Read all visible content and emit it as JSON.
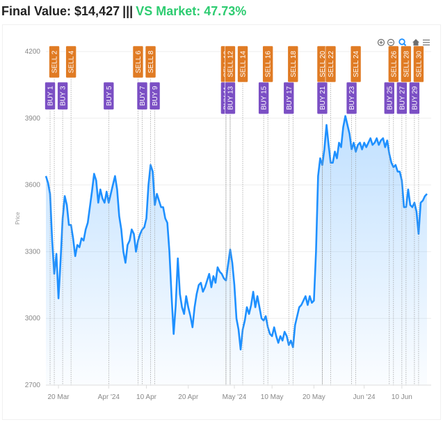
{
  "header": {
    "final_label": "Final Value: $14,427",
    "separator": "|||",
    "market_label": "VS Market: 47.73%",
    "market_color": "#2ecc71"
  },
  "toolbar": {
    "icons": [
      "zoom-in-icon",
      "zoom-out-icon",
      "magnify-icon",
      "home-icon",
      "menu-icon"
    ],
    "active_color": "#1e90ff"
  },
  "chart_data": {
    "type": "area",
    "ylabel": "Price",
    "ylim": [
      2700,
      4200
    ],
    "yticks": [
      2700,
      3000,
      3300,
      3600,
      3900,
      4200
    ],
    "xlim": [
      "2024-03-17",
      "2024-06-17"
    ],
    "xticks": [
      {
        "date": "2024-03-20",
        "label": "20 Mar"
      },
      {
        "date": "2024-04-01",
        "label": "Apr '24"
      },
      {
        "date": "2024-04-10",
        "label": "10 Apr"
      },
      {
        "date": "2024-04-20",
        "label": "20 Apr"
      },
      {
        "date": "2024-05-01",
        "label": "May '24"
      },
      {
        "date": "2024-05-10",
        "label": "10 May"
      },
      {
        "date": "2024-05-20",
        "label": "20 May"
      },
      {
        "date": "2024-06-01",
        "label": "Jun '24"
      },
      {
        "date": "2024-06-10",
        "label": "10 Jun"
      }
    ],
    "line_color": "#1e90ff",
    "buy_color": "#7b4fc4",
    "sell_color": "#e07b24",
    "series": [
      {
        "points": [
          [
            "2024-03-17",
            3640
          ],
          [
            "2024-03-17T12",
            3610
          ],
          [
            "2024-03-18",
            3560
          ],
          [
            "2024-03-18T12",
            3350
          ],
          [
            "2024-03-19",
            3200
          ],
          [
            "2024-03-19T12",
            3290
          ],
          [
            "2024-03-20",
            3090
          ],
          [
            "2024-03-20T12",
            3260
          ],
          [
            "2024-03-21",
            3450
          ],
          [
            "2024-03-21T12",
            3550
          ],
          [
            "2024-03-22",
            3510
          ],
          [
            "2024-03-22T12",
            3420
          ],
          [
            "2024-03-23",
            3420
          ],
          [
            "2024-03-23T12",
            3360
          ],
          [
            "2024-03-24",
            3280
          ],
          [
            "2024-03-24T12",
            3330
          ],
          [
            "2024-03-25",
            3320
          ],
          [
            "2024-03-25T12",
            3360
          ],
          [
            "2024-03-26",
            3350
          ],
          [
            "2024-03-26T12",
            3400
          ],
          [
            "2024-03-27",
            3430
          ],
          [
            "2024-03-27T12",
            3500
          ],
          [
            "2024-03-28",
            3570
          ],
          [
            "2024-03-28T12",
            3650
          ],
          [
            "2024-03-29",
            3620
          ],
          [
            "2024-03-29T12",
            3520
          ],
          [
            "2024-03-30",
            3580
          ],
          [
            "2024-03-30T12",
            3540
          ],
          [
            "2024-03-31",
            3520
          ],
          [
            "2024-03-31T12",
            3570
          ],
          [
            "2024-04-01",
            3520
          ],
          [
            "2024-04-01T12",
            3560
          ],
          [
            "2024-04-02",
            3600
          ],
          [
            "2024-04-02T12",
            3640
          ],
          [
            "2024-04-03",
            3580
          ],
          [
            "2024-04-03T12",
            3460
          ],
          [
            "2024-04-04",
            3400
          ],
          [
            "2024-04-04T12",
            3300
          ],
          [
            "2024-04-05",
            3250
          ],
          [
            "2024-04-05T12",
            3330
          ],
          [
            "2024-04-06",
            3350
          ],
          [
            "2024-04-06T12",
            3400
          ],
          [
            "2024-04-07",
            3380
          ],
          [
            "2024-04-07T12",
            3300
          ],
          [
            "2024-04-08",
            3350
          ],
          [
            "2024-04-08T12",
            3380
          ],
          [
            "2024-04-09",
            3400
          ],
          [
            "2024-04-09T12",
            3410
          ],
          [
            "2024-04-10",
            3450
          ],
          [
            "2024-04-10T12",
            3600
          ],
          [
            "2024-04-11",
            3690
          ],
          [
            "2024-04-11T12",
            3660
          ],
          [
            "2024-04-12",
            3510
          ],
          [
            "2024-04-12T12",
            3560
          ],
          [
            "2024-04-13",
            3530
          ],
          [
            "2024-04-13T12",
            3500
          ],
          [
            "2024-04-14",
            3500
          ],
          [
            "2024-04-14T12",
            3450
          ],
          [
            "2024-04-15",
            3430
          ],
          [
            "2024-04-15T12",
            3300
          ],
          [
            "2024-04-16",
            3100
          ],
          [
            "2024-04-16T12",
            2930
          ],
          [
            "2024-04-17",
            3060
          ],
          [
            "2024-04-17T12",
            3270
          ],
          [
            "2024-04-18",
            3110
          ],
          [
            "2024-04-18T12",
            3050
          ],
          [
            "2024-04-19",
            3020
          ],
          [
            "2024-04-19T12",
            3100
          ],
          [
            "2024-04-20",
            3050
          ],
          [
            "2024-04-20T12",
            3010
          ],
          [
            "2024-04-21",
            2960
          ],
          [
            "2024-04-21T12",
            3050
          ],
          [
            "2024-04-22",
            3110
          ],
          [
            "2024-04-22T12",
            3150
          ],
          [
            "2024-04-23",
            3160
          ],
          [
            "2024-04-23T12",
            3120
          ],
          [
            "2024-04-24",
            3140
          ],
          [
            "2024-04-24T12",
            3170
          ],
          [
            "2024-04-25",
            3200
          ],
          [
            "2024-04-25T12",
            3140
          ],
          [
            "2024-04-26",
            3190
          ],
          [
            "2024-04-26T12",
            3160
          ],
          [
            "2024-04-27",
            3230
          ],
          [
            "2024-04-27T12",
            3210
          ],
          [
            "2024-04-28",
            3200
          ],
          [
            "2024-04-28T12",
            3180
          ],
          [
            "2024-04-29",
            3170
          ],
          [
            "2024-04-29T12",
            3240
          ],
          [
            "2024-04-30",
            3310
          ],
          [
            "2024-04-30T12",
            3250
          ],
          [
            "2024-05-01",
            3150
          ],
          [
            "2024-05-01T12",
            3000
          ],
          [
            "2024-05-02",
            2950
          ],
          [
            "2024-05-02T12",
            2860
          ],
          [
            "2024-05-03",
            2950
          ],
          [
            "2024-05-03T12",
            2990
          ],
          [
            "2024-05-04",
            3050
          ],
          [
            "2024-05-04T12",
            3020
          ],
          [
            "2024-05-05",
            3060
          ],
          [
            "2024-05-05T12",
            3120
          ],
          [
            "2024-05-06",
            3050
          ],
          [
            "2024-05-06T12",
            3100
          ],
          [
            "2024-05-07",
            3050
          ],
          [
            "2024-05-07T12",
            3000
          ],
          [
            "2024-05-08",
            2990
          ],
          [
            "2024-05-08T12",
            3010
          ],
          [
            "2024-05-09",
            2960
          ],
          [
            "2024-05-09T12",
            2930
          ],
          [
            "2024-05-10",
            2920
          ],
          [
            "2024-05-10T12",
            2960
          ],
          [
            "2024-05-11",
            2920
          ],
          [
            "2024-05-11T12",
            2890
          ],
          [
            "2024-05-12",
            2920
          ],
          [
            "2024-05-12T12",
            2900
          ],
          [
            "2024-05-13",
            2940
          ],
          [
            "2024-05-13T12",
            2920
          ],
          [
            "2024-05-14",
            2880
          ],
          [
            "2024-05-14T12",
            2900
          ],
          [
            "2024-05-15",
            2870
          ],
          [
            "2024-05-15T12",
            2970
          ],
          [
            "2024-05-16",
            3010
          ],
          [
            "2024-05-16T12",
            3050
          ],
          [
            "2024-05-17",
            3060
          ],
          [
            "2024-05-17T12",
            3080
          ],
          [
            "2024-05-18",
            3100
          ],
          [
            "2024-05-18T12",
            3060
          ],
          [
            "2024-05-19",
            3100
          ],
          [
            "2024-05-19T12",
            3070
          ],
          [
            "2024-05-20",
            3080
          ],
          [
            "2024-05-20T12",
            3300
          ],
          [
            "2024-05-21",
            3640
          ],
          [
            "2024-05-21T12",
            3720
          ],
          [
            "2024-05-22",
            3690
          ],
          [
            "2024-05-22T12",
            3760
          ],
          [
            "2024-05-23",
            3870
          ],
          [
            "2024-05-23T12",
            3780
          ],
          [
            "2024-05-24",
            3700
          ],
          [
            "2024-05-24T12",
            3700
          ],
          [
            "2024-05-25",
            3750
          ],
          [
            "2024-05-25T12",
            3720
          ],
          [
            "2024-05-26",
            3790
          ],
          [
            "2024-05-26T12",
            3770
          ],
          [
            "2024-05-27",
            3860
          ],
          [
            "2024-05-27T12",
            3910
          ],
          [
            "2024-05-28",
            3870
          ],
          [
            "2024-05-28T12",
            3830
          ],
          [
            "2024-05-29",
            3760
          ],
          [
            "2024-05-29T12",
            3790
          ],
          [
            "2024-05-30",
            3750
          ],
          [
            "2024-05-30T12",
            3780
          ],
          [
            "2024-05-31",
            3790
          ],
          [
            "2024-05-31T12",
            3760
          ],
          [
            "2024-06-01",
            3790
          ],
          [
            "2024-06-01T12",
            3770
          ],
          [
            "2024-06-02",
            3790
          ],
          [
            "2024-06-02T12",
            3810
          ],
          [
            "2024-06-03",
            3780
          ],
          [
            "2024-06-03T12",
            3790
          ],
          [
            "2024-06-04",
            3810
          ],
          [
            "2024-06-04T12",
            3780
          ],
          [
            "2024-06-05",
            3800
          ],
          [
            "2024-06-05T12",
            3810
          ],
          [
            "2024-06-06",
            3770
          ],
          [
            "2024-06-06T12",
            3800
          ],
          [
            "2024-06-07",
            3740
          ],
          [
            "2024-06-07T12",
            3700
          ],
          [
            "2024-06-08",
            3680
          ],
          [
            "2024-06-08T12",
            3690
          ],
          [
            "2024-06-09",
            3660
          ],
          [
            "2024-06-09T12",
            3660
          ],
          [
            "2024-06-10",
            3620
          ],
          [
            "2024-06-10T12",
            3500
          ],
          [
            "2024-06-11",
            3500
          ],
          [
            "2024-06-11T12",
            3580
          ],
          [
            "2024-06-12",
            3510
          ],
          [
            "2024-06-12T12",
            3500
          ],
          [
            "2024-06-13",
            3520
          ],
          [
            "2024-06-13T12",
            3480
          ],
          [
            "2024-06-14",
            3380
          ],
          [
            "2024-06-14T12",
            3520
          ],
          [
            "2024-06-15",
            3530
          ],
          [
            "2024-06-15T12",
            3550
          ],
          [
            "2024-06-16",
            3560
          ]
        ]
      }
    ],
    "signals": [
      {
        "label": "BUY 1",
        "type": "buy",
        "date": "2024-03-18"
      },
      {
        "label": "SELL 2",
        "type": "sell",
        "date": "2024-03-19"
      },
      {
        "label": "BUY 3",
        "type": "buy",
        "date": "2024-03-21"
      },
      {
        "label": "SELL 4",
        "type": "sell",
        "date": "2024-03-23"
      },
      {
        "label": "BUY 5",
        "type": "buy",
        "date": "2024-04-01"
      },
      {
        "label": "SELL 6",
        "type": "sell",
        "date": "2024-04-08"
      },
      {
        "label": "BUY 7",
        "type": "buy",
        "date": "2024-04-09"
      },
      {
        "label": "SELL 8",
        "type": "sell",
        "date": "2024-04-11"
      },
      {
        "label": "BUY 9",
        "type": "buy",
        "date": "2024-04-12"
      },
      {
        "label": "SELL 10",
        "type": "sell",
        "date": "2024-04-29"
      },
      {
        "label": "BUY 11",
        "type": "buy",
        "date": "2024-04-29"
      },
      {
        "label": "SELL 12",
        "type": "sell",
        "date": "2024-04-30"
      },
      {
        "label": "BUY 13",
        "type": "buy",
        "date": "2024-04-30"
      },
      {
        "label": "SELL 14",
        "type": "sell",
        "date": "2024-05-03"
      },
      {
        "label": "BUY 15",
        "type": "buy",
        "date": "2024-05-08"
      },
      {
        "label": "SELL 16",
        "type": "sell",
        "date": "2024-05-09"
      },
      {
        "label": "BUY 17",
        "type": "buy",
        "date": "2024-05-14"
      },
      {
        "label": "SELL 18",
        "type": "sell",
        "date": "2024-05-15"
      },
      {
        "label": "SELL 20",
        "type": "sell",
        "date": "2024-05-22"
      },
      {
        "label": "BUY 21",
        "type": "buy",
        "date": "2024-05-22"
      },
      {
        "label": "SELL 22",
        "type": "sell",
        "date": "2024-05-24"
      },
      {
        "label": "BUY 23",
        "type": "buy",
        "date": "2024-05-29"
      },
      {
        "label": "SELL 24",
        "type": "sell",
        "date": "2024-05-30"
      },
      {
        "label": "BUY 25",
        "type": "buy",
        "date": "2024-06-07"
      },
      {
        "label": "SELL 26",
        "type": "sell",
        "date": "2024-06-08"
      },
      {
        "label": "BUY 27",
        "type": "buy",
        "date": "2024-06-10"
      },
      {
        "label": "SELL 28",
        "type": "sell",
        "date": "2024-06-11"
      },
      {
        "label": "BUY 29",
        "type": "buy",
        "date": "2024-06-13"
      },
      {
        "label": "SELL 30",
        "type": "sell",
        "date": "2024-06-14"
      }
    ]
  }
}
